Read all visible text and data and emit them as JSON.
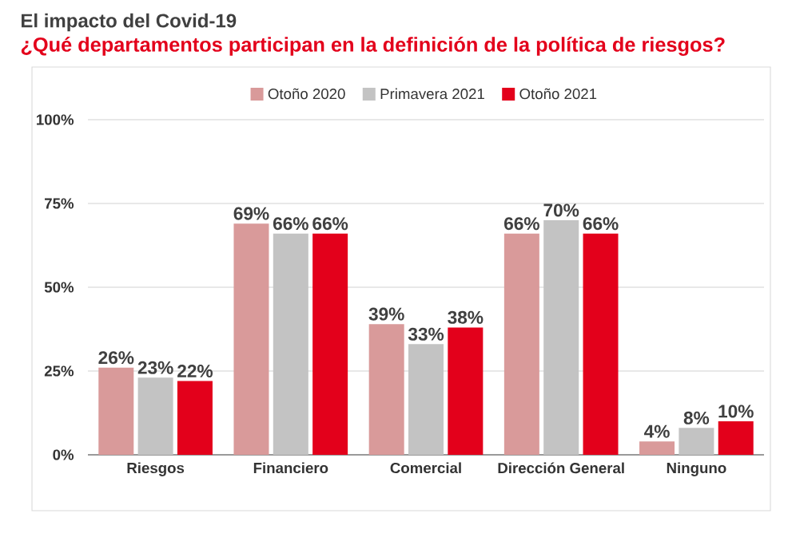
{
  "chart_data": {
    "type": "bar",
    "title": "El impacto del Covid-19",
    "subtitle": "¿Qué departamentos participan en la definición de la política de riesgos?",
    "categories": [
      "Riesgos",
      "Financiero",
      "Comercial",
      "Dirección General",
      "Ninguno"
    ],
    "series": [
      {
        "name": "Otoño 2020",
        "color": "#d99a9a",
        "values": [
          26,
          69,
          39,
          66,
          4
        ],
        "value_labels": [
          "26%",
          "69%",
          "39%",
          "66%",
          "4%"
        ]
      },
      {
        "name": "Primavera 2021",
        "color": "#c3c3c3",
        "values": [
          23,
          66,
          33,
          70,
          8
        ],
        "value_labels": [
          "23%",
          "66%",
          "33%",
          "70%",
          "8%"
        ]
      },
      {
        "name": "Otoño 2021",
        "color": "#e3001b",
        "values": [
          22,
          66,
          38,
          66,
          10
        ],
        "value_labels": [
          "22%",
          "66%",
          "38%",
          "66%",
          "10%"
        ]
      }
    ],
    "ylim": [
      0,
      100
    ],
    "yticks": [
      {
        "value": 0,
        "label": "0%"
      },
      {
        "value": 25,
        "label": "25%"
      },
      {
        "value": 50,
        "label": "50%"
      },
      {
        "value": 75,
        "label": "75%"
      },
      {
        "value": 100,
        "label": "100%"
      }
    ],
    "grid": "y",
    "legend": "top"
  }
}
